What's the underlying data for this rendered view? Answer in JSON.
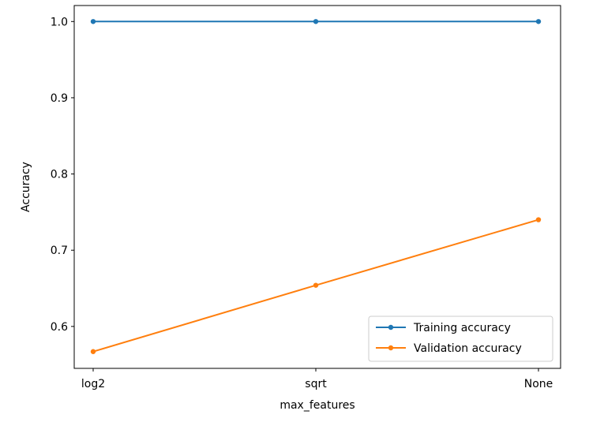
{
  "chart_data": {
    "type": "line",
    "categories": [
      "log2",
      "sqrt",
      "None"
    ],
    "xlabel": "max_features",
    "ylabel": "Accuracy",
    "ylim": [
      0.545,
      1.021
    ],
    "yticks": [
      0.6,
      0.7,
      0.8,
      0.9,
      1.0
    ],
    "ytick_labels": [
      "0.6",
      "0.7",
      "0.8",
      "0.9",
      "1.0"
    ],
    "grid": false,
    "legend_position": "bottom-right",
    "series": [
      {
        "name": "Training accuracy",
        "values": [
          1.0,
          1.0,
          1.0
        ],
        "color": "#1f77b4",
        "marker": "circle"
      },
      {
        "name": "Validation accuracy",
        "values": [
          0.567,
          0.654,
          0.74
        ],
        "color": "#ff7f0e",
        "marker": "circle"
      }
    ]
  }
}
